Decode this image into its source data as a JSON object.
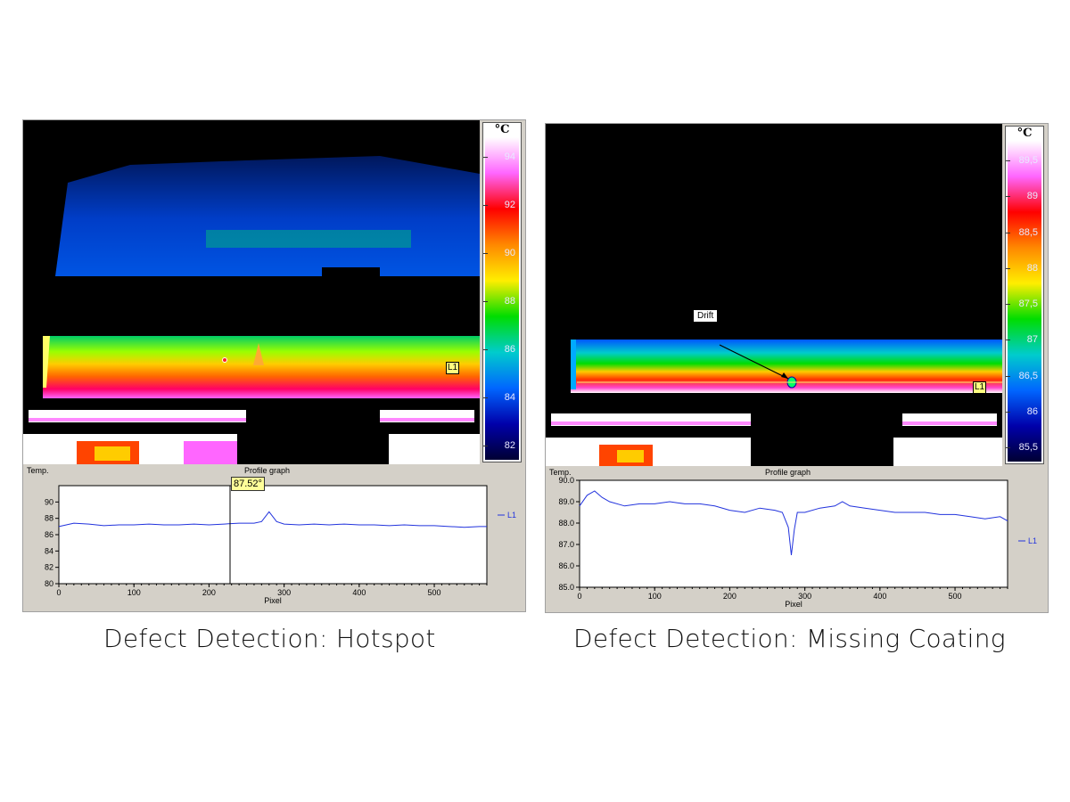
{
  "left": {
    "scale": {
      "unit": "°C",
      "ticks": [
        "94",
        "92",
        "90",
        "88",
        "86",
        "84",
        "82"
      ],
      "colors": [
        "#ffffff",
        "#ff66ff",
        "#ff0000",
        "#ff8800",
        "#ffee00",
        "#00dd00",
        "#00cccc",
        "#0066ff",
        "#0000aa",
        "#000033"
      ]
    },
    "line_tag": "L1",
    "graph": {
      "title": "Profile graph",
      "ylabel": "Temp.",
      "xlabel": "Pixel",
      "y_ticks": [
        "90",
        "88",
        "86",
        "84",
        "82",
        "80"
      ],
      "x_ticks": [
        "0",
        "100",
        "200",
        "300",
        "400",
        "500"
      ],
      "legend": "L1",
      "tooltip": "87.52°"
    },
    "caption": "Defect Detection: Hotspot"
  },
  "right": {
    "scale": {
      "unit": "°C",
      "ticks": [
        "89,5",
        "89",
        "88,5",
        "88",
        "87,5",
        "87",
        "86,5",
        "86",
        "85,5"
      ],
      "colors": [
        "#ffffff",
        "#ff66ff",
        "#ff0000",
        "#ff8800",
        "#ffee00",
        "#00dd00",
        "#00cccc",
        "#0066ff",
        "#0000aa",
        "#000033"
      ]
    },
    "line_tag": "L1",
    "callout": "Drift",
    "graph": {
      "title": "Profile graph",
      "ylabel": "Temp.",
      "xlabel": "Pixel",
      "y_ticks": [
        "90.0",
        "89.0",
        "88.0",
        "87.0",
        "86.0",
        "85.0"
      ],
      "x_ticks": [
        "0",
        "100",
        "200",
        "300",
        "400",
        "500"
      ],
      "legend": "L1"
    },
    "caption": "Defect Detection: Missing Coating"
  },
  "chart_data": [
    {
      "type": "line",
      "title": "Profile graph",
      "xlabel": "Pixel",
      "ylabel": "Temp.",
      "xlim": [
        0,
        570
      ],
      "ylim": [
        80,
        92
      ],
      "series": [
        {
          "name": "L1",
          "x": [
            0,
            20,
            40,
            60,
            80,
            100,
            120,
            140,
            160,
            180,
            200,
            220,
            240,
            260,
            270,
            280,
            290,
            300,
            320,
            340,
            360,
            380,
            400,
            420,
            440,
            460,
            480,
            500,
            520,
            540,
            560,
            570
          ],
          "y": [
            87.0,
            87.4,
            87.3,
            87.1,
            87.2,
            87.2,
            87.3,
            87.2,
            87.2,
            87.3,
            87.2,
            87.3,
            87.4,
            87.4,
            87.6,
            88.8,
            87.6,
            87.3,
            87.2,
            87.3,
            87.2,
            87.3,
            87.2,
            87.2,
            87.1,
            87.2,
            87.1,
            87.1,
            87.0,
            86.9,
            87.0,
            87.0
          ]
        }
      ]
    },
    {
      "type": "line",
      "title": "Profile graph",
      "xlabel": "Pixel",
      "ylabel": "Temp.",
      "xlim": [
        0,
        570
      ],
      "ylim": [
        85,
        90
      ],
      "series": [
        {
          "name": "L1",
          "x": [
            0,
            10,
            20,
            30,
            40,
            60,
            80,
            100,
            120,
            140,
            160,
            180,
            200,
            220,
            240,
            260,
            270,
            278,
            282,
            286,
            290,
            300,
            320,
            340,
            350,
            360,
            380,
            400,
            420,
            440,
            460,
            480,
            500,
            520,
            540,
            560,
            570
          ],
          "y": [
            88.8,
            89.3,
            89.5,
            89.2,
            89.0,
            88.8,
            88.9,
            88.9,
            89.0,
            88.9,
            88.9,
            88.8,
            88.6,
            88.5,
            88.7,
            88.6,
            88.5,
            87.8,
            86.5,
            87.7,
            88.5,
            88.5,
            88.7,
            88.8,
            89.0,
            88.8,
            88.7,
            88.6,
            88.5,
            88.5,
            88.5,
            88.4,
            88.4,
            88.3,
            88.2,
            88.3,
            88.1
          ]
        }
      ]
    }
  ]
}
